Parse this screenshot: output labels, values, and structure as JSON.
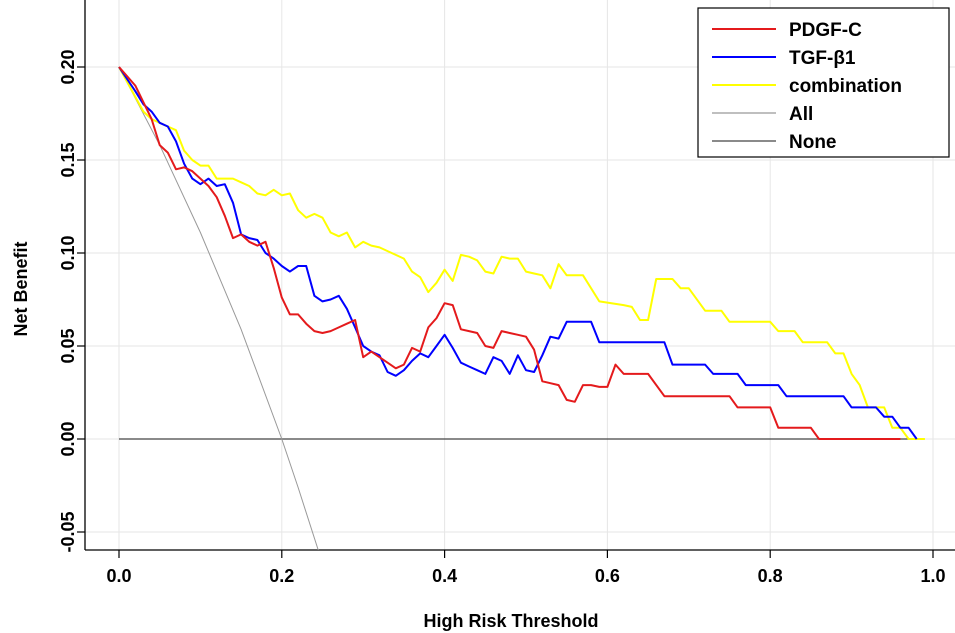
{
  "chart_data": {
    "type": "line",
    "title": "",
    "xlabel": "High Risk Threshold",
    "ylabel": "Net Benefit",
    "xlim": [
      0.0,
      1.0
    ],
    "ylim": [
      -0.06,
      0.23
    ],
    "xticks": [
      0.0,
      0.2,
      0.4,
      0.6,
      0.8,
      1.0
    ],
    "xtick_labels": [
      "0.0",
      "0.2",
      "0.4",
      "0.6",
      "0.8",
      "1.0"
    ],
    "yticks": [
      -0.05,
      0.0,
      0.05,
      0.1,
      0.15,
      0.2
    ],
    "ytick_labels": [
      "-0.05",
      "0.00",
      "0.05",
      "0.10",
      "0.15",
      "0.20"
    ],
    "grid": true,
    "legend_position": "top-right",
    "series": [
      {
        "name": "PDGF-C",
        "color": "#e41a1c",
        "points": [
          [
            0.0,
            0.2
          ],
          [
            0.02,
            0.19
          ],
          [
            0.04,
            0.172
          ],
          [
            0.05,
            0.158
          ],
          [
            0.06,
            0.154
          ],
          [
            0.07,
            0.145
          ],
          [
            0.08,
            0.146
          ],
          [
            0.09,
            0.144
          ],
          [
            0.1,
            0.14
          ],
          [
            0.11,
            0.136
          ],
          [
            0.12,
            0.13
          ],
          [
            0.13,
            0.12
          ],
          [
            0.14,
            0.108
          ],
          [
            0.15,
            0.11
          ],
          [
            0.16,
            0.106
          ],
          [
            0.17,
            0.104
          ],
          [
            0.18,
            0.106
          ],
          [
            0.19,
            0.092
          ],
          [
            0.2,
            0.076
          ],
          [
            0.21,
            0.067
          ],
          [
            0.22,
            0.067
          ],
          [
            0.23,
            0.062
          ],
          [
            0.24,
            0.058
          ],
          [
            0.25,
            0.057
          ],
          [
            0.26,
            0.058
          ],
          [
            0.27,
            0.06
          ],
          [
            0.28,
            0.062
          ],
          [
            0.29,
            0.064
          ],
          [
            0.3,
            0.044
          ],
          [
            0.31,
            0.047
          ],
          [
            0.32,
            0.044
          ],
          [
            0.33,
            0.041
          ],
          [
            0.34,
            0.038
          ],
          [
            0.35,
            0.04
          ],
          [
            0.36,
            0.049
          ],
          [
            0.37,
            0.047
          ],
          [
            0.38,
            0.06
          ],
          [
            0.39,
            0.065
          ],
          [
            0.4,
            0.073
          ],
          [
            0.41,
            0.072
          ],
          [
            0.42,
            0.059
          ],
          [
            0.43,
            0.058
          ],
          [
            0.44,
            0.057
          ],
          [
            0.45,
            0.05
          ],
          [
            0.46,
            0.049
          ],
          [
            0.47,
            0.058
          ],
          [
            0.48,
            0.057
          ],
          [
            0.49,
            0.056
          ],
          [
            0.5,
            0.055
          ],
          [
            0.51,
            0.048
          ],
          [
            0.52,
            0.031
          ],
          [
            0.53,
            0.03
          ],
          [
            0.54,
            0.029
          ],
          [
            0.55,
            0.021
          ],
          [
            0.56,
            0.02
          ],
          [
            0.57,
            0.029
          ],
          [
            0.58,
            0.029
          ],
          [
            0.59,
            0.028
          ],
          [
            0.6,
            0.028
          ],
          [
            0.61,
            0.04
          ],
          [
            0.62,
            0.035
          ],
          [
            0.65,
            0.035
          ],
          [
            0.67,
            0.023
          ],
          [
            0.75,
            0.023
          ],
          [
            0.76,
            0.017
          ],
          [
            0.8,
            0.017
          ],
          [
            0.81,
            0.006
          ],
          [
            0.85,
            0.006
          ],
          [
            0.86,
            0.0
          ],
          [
            0.96,
            0.0
          ]
        ]
      },
      {
        "name": "TGF-β1",
        "color": "#0000ff",
        "points": [
          [
            0.0,
            0.2
          ],
          [
            0.02,
            0.187
          ],
          [
            0.03,
            0.18
          ],
          [
            0.04,
            0.176
          ],
          [
            0.05,
            0.17
          ],
          [
            0.06,
            0.168
          ],
          [
            0.07,
            0.16
          ],
          [
            0.08,
            0.148
          ],
          [
            0.09,
            0.14
          ],
          [
            0.1,
            0.137
          ],
          [
            0.11,
            0.14
          ],
          [
            0.12,
            0.136
          ],
          [
            0.13,
            0.137
          ],
          [
            0.14,
            0.127
          ],
          [
            0.15,
            0.11
          ],
          [
            0.16,
            0.108
          ],
          [
            0.17,
            0.107
          ],
          [
            0.18,
            0.1
          ],
          [
            0.19,
            0.097
          ],
          [
            0.2,
            0.093
          ],
          [
            0.21,
            0.09
          ],
          [
            0.22,
            0.093
          ],
          [
            0.23,
            0.093
          ],
          [
            0.24,
            0.077
          ],
          [
            0.25,
            0.074
          ],
          [
            0.26,
            0.075
          ],
          [
            0.27,
            0.077
          ],
          [
            0.28,
            0.07
          ],
          [
            0.29,
            0.06
          ],
          [
            0.3,
            0.05
          ],
          [
            0.31,
            0.047
          ],
          [
            0.32,
            0.045
          ],
          [
            0.33,
            0.036
          ],
          [
            0.34,
            0.034
          ],
          [
            0.35,
            0.037
          ],
          [
            0.36,
            0.042
          ],
          [
            0.37,
            0.046
          ],
          [
            0.38,
            0.044
          ],
          [
            0.39,
            0.05
          ],
          [
            0.4,
            0.056
          ],
          [
            0.41,
            0.049
          ],
          [
            0.42,
            0.041
          ],
          [
            0.43,
            0.039
          ],
          [
            0.44,
            0.037
          ],
          [
            0.45,
            0.035
          ],
          [
            0.46,
            0.044
          ],
          [
            0.47,
            0.042
          ],
          [
            0.48,
            0.035
          ],
          [
            0.49,
            0.045
          ],
          [
            0.5,
            0.037
          ],
          [
            0.51,
            0.036
          ],
          [
            0.52,
            0.045
          ],
          [
            0.53,
            0.055
          ],
          [
            0.54,
            0.054
          ],
          [
            0.55,
            0.063
          ],
          [
            0.58,
            0.063
          ],
          [
            0.59,
            0.052
          ],
          [
            0.67,
            0.052
          ],
          [
            0.68,
            0.04
          ],
          [
            0.72,
            0.04
          ],
          [
            0.73,
            0.035
          ],
          [
            0.76,
            0.035
          ],
          [
            0.77,
            0.029
          ],
          [
            0.81,
            0.029
          ],
          [
            0.82,
            0.023
          ],
          [
            0.89,
            0.023
          ],
          [
            0.9,
            0.017
          ],
          [
            0.92,
            0.017
          ],
          [
            0.93,
            0.017
          ],
          [
            0.94,
            0.012
          ],
          [
            0.95,
            0.012
          ],
          [
            0.96,
            0.006
          ],
          [
            0.97,
            0.006
          ],
          [
            0.98,
            0.0
          ]
        ]
      },
      {
        "name": "combination",
        "color": "#ffff00",
        "points": [
          [
            0.0,
            0.2
          ],
          [
            0.02,
            0.184
          ],
          [
            0.03,
            0.176
          ],
          [
            0.04,
            0.172
          ],
          [
            0.05,
            0.17
          ],
          [
            0.06,
            0.168
          ],
          [
            0.07,
            0.166
          ],
          [
            0.08,
            0.155
          ],
          [
            0.09,
            0.15
          ],
          [
            0.1,
            0.147
          ],
          [
            0.11,
            0.147
          ],
          [
            0.12,
            0.14
          ],
          [
            0.14,
            0.14
          ],
          [
            0.15,
            0.138
          ],
          [
            0.16,
            0.136
          ],
          [
            0.17,
            0.132
          ],
          [
            0.18,
            0.131
          ],
          [
            0.19,
            0.134
          ],
          [
            0.2,
            0.131
          ],
          [
            0.21,
            0.132
          ],
          [
            0.22,
            0.123
          ],
          [
            0.23,
            0.119
          ],
          [
            0.24,
            0.121
          ],
          [
            0.25,
            0.119
          ],
          [
            0.26,
            0.111
          ],
          [
            0.27,
            0.109
          ],
          [
            0.28,
            0.111
          ],
          [
            0.29,
            0.103
          ],
          [
            0.3,
            0.106
          ],
          [
            0.31,
            0.104
          ],
          [
            0.32,
            0.103
          ],
          [
            0.33,
            0.101
          ],
          [
            0.34,
            0.099
          ],
          [
            0.35,
            0.097
          ],
          [
            0.36,
            0.09
          ],
          [
            0.37,
            0.087
          ],
          [
            0.38,
            0.079
          ],
          [
            0.39,
            0.084
          ],
          [
            0.4,
            0.091
          ],
          [
            0.41,
            0.085
          ],
          [
            0.42,
            0.099
          ],
          [
            0.43,
            0.098
          ],
          [
            0.44,
            0.096
          ],
          [
            0.45,
            0.09
          ],
          [
            0.46,
            0.089
          ],
          [
            0.47,
            0.098
          ],
          [
            0.48,
            0.097
          ],
          [
            0.49,
            0.097
          ],
          [
            0.5,
            0.09
          ],
          [
            0.51,
            0.089
          ],
          [
            0.52,
            0.088
          ],
          [
            0.53,
            0.081
          ],
          [
            0.54,
            0.094
          ],
          [
            0.55,
            0.088
          ],
          [
            0.57,
            0.088
          ],
          [
            0.59,
            0.074
          ],
          [
            0.62,
            0.072
          ],
          [
            0.63,
            0.071
          ],
          [
            0.64,
            0.064
          ],
          [
            0.65,
            0.064
          ],
          [
            0.66,
            0.086
          ],
          [
            0.68,
            0.086
          ],
          [
            0.69,
            0.081
          ],
          [
            0.7,
            0.081
          ],
          [
            0.72,
            0.069
          ],
          [
            0.74,
            0.069
          ],
          [
            0.75,
            0.063
          ],
          [
            0.8,
            0.063
          ],
          [
            0.81,
            0.058
          ],
          [
            0.83,
            0.058
          ],
          [
            0.84,
            0.052
          ],
          [
            0.87,
            0.052
          ],
          [
            0.88,
            0.046
          ],
          [
            0.89,
            0.046
          ],
          [
            0.9,
            0.035
          ],
          [
            0.91,
            0.029
          ],
          [
            0.92,
            0.017
          ],
          [
            0.94,
            0.017
          ],
          [
            0.95,
            0.006
          ],
          [
            0.96,
            0.006
          ],
          [
            0.97,
            0.0
          ],
          [
            0.99,
            0.0
          ]
        ]
      },
      {
        "name": "All",
        "color": "#999999",
        "points": [
          [
            0.0,
            0.2
          ],
          [
            0.05,
            0.158
          ],
          [
            0.1,
            0.111
          ],
          [
            0.15,
            0.059
          ],
          [
            0.2,
            0.0
          ],
          [
            0.22,
            -0.026
          ],
          [
            0.245,
            -0.06
          ]
        ]
      },
      {
        "name": "None",
        "color": "#444444",
        "points": [
          [
            0.0,
            0.0
          ],
          [
            0.98,
            0.0
          ]
        ]
      }
    ]
  }
}
